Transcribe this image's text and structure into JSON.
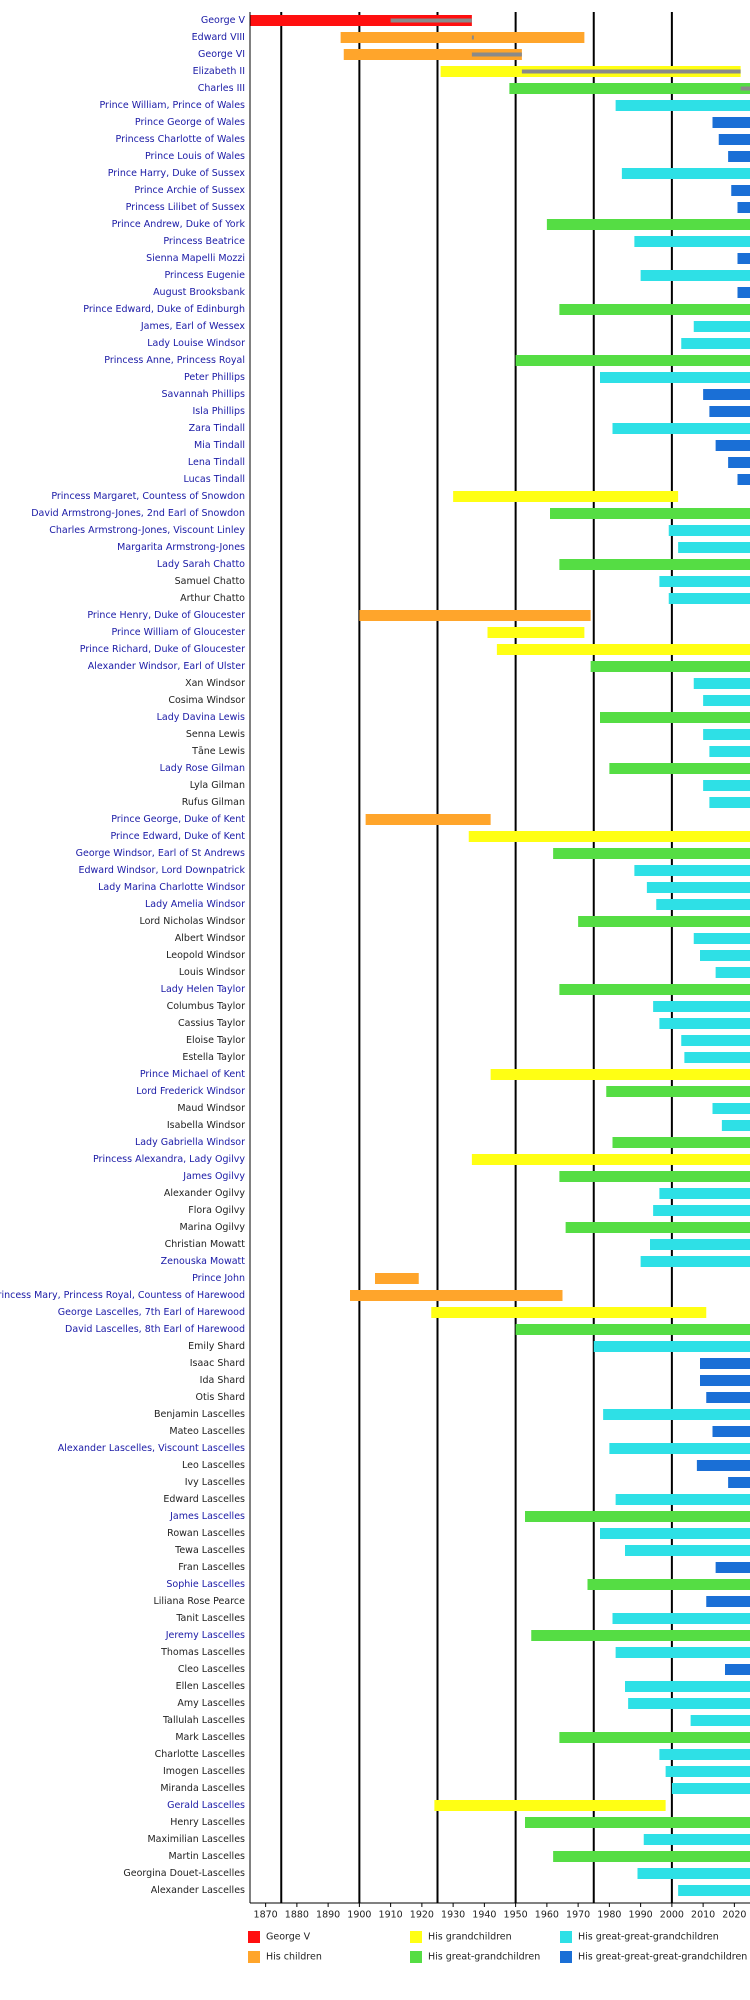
{
  "chart_data": {
    "type": "timeline",
    "categories": [
      "George V",
      "Edward VIII",
      "George VI",
      "Elizabeth II",
      "Charles III",
      "Prince William, Prince of Wales",
      "Prince George of Wales",
      "Princess Charlotte of Wales",
      "Prince Louis of Wales",
      "Prince Harry, Duke of Sussex",
      "Prince Archie of Sussex",
      "Princess Lilibet of Sussex",
      "Prince Andrew, Duke of York",
      "Princess Beatrice",
      "Sienna Mapelli Mozzi",
      "Princess Eugenie",
      "August Brooksbank",
      "Prince Edward, Duke of Edinburgh",
      "James, Earl of Wessex",
      "Lady Louise Windsor",
      "Princess Anne, Princess Royal",
      "Peter Phillips",
      "Savannah Phillips",
      "Isla Phillips",
      "Zara Tindall",
      "Mia Tindall",
      "Lena Tindall",
      "Lucas Tindall",
      "Princess Margaret, Countess of Snowdon",
      "David Armstrong-Jones, 2nd Earl of Snowdon",
      "Charles Armstrong-Jones, Viscount Linley",
      "Margarita Armstrong-Jones",
      "Lady Sarah Chatto",
      "Samuel Chatto",
      "Arthur Chatto",
      "Prince Henry, Duke of Gloucester",
      "Prince William of Gloucester",
      "Prince Richard, Duke of Gloucester",
      "Alexander Windsor, Earl of Ulster",
      "Xan Windsor",
      "Cosima Windsor",
      "Lady Davina Lewis",
      "Senna Lewis",
      "Tāne Lewis",
      "Lady Rose Gilman",
      "Lyla Gilman",
      "Rufus Gilman",
      "Prince George, Duke of Kent",
      "Prince Edward, Duke of Kent",
      "George Windsor, Earl of St Andrews",
      "Edward Windsor, Lord Downpatrick",
      "Lady Marina Charlotte Windsor",
      "Lady Amelia Windsor",
      "Lord Nicholas Windsor",
      "Albert Windsor",
      "Leopold Windsor",
      "Louis Windsor",
      "Lady Helen Taylor",
      "Columbus Taylor",
      "Cassius Taylor",
      "Eloise Taylor",
      "Estella Taylor",
      "Prince Michael of Kent",
      "Lord Frederick Windsor",
      "Maud Windsor",
      "Isabella Windsor",
      "Lady Gabriella Windsor",
      "Princess Alexandra, Lady Ogilvy",
      "James Ogilvy",
      "Alexander Ogilvy",
      "Flora Ogilvy",
      "Marina Ogilvy",
      "Christian Mowatt",
      "Zenouska Mowatt",
      "Prince John",
      "Princess Mary, Princess Royal, Countess of Harewood",
      "George Lascelles, 7th Earl of Harewood",
      "David Lascelles, 8th Earl of Harewood",
      "Emily Shard",
      "Isaac Shard",
      "Ida Shard",
      "Otis Shard",
      "Benjamin Lascelles",
      "Mateo Lascelles",
      "Alexander Lascelles, Viscount Lascelles",
      "Leo Lascelles",
      "Ivy Lascelles",
      "Edward Lascelles",
      "James Lascelles",
      "Rowan Lascelles",
      "Tewa Lascelles",
      "Fran Lascelles",
      "Sophie Lascelles",
      "Liliana Rose Pearce",
      "Tanit Lascelles",
      "Jeremy Lascelles",
      "Thomas Lascelles",
      "Cleo Lascelles",
      "Ellen Lascelles",
      "Amy Lascelles",
      "Tallulah Lascelles",
      "Mark Lascelles",
      "Charlotte Lascelles",
      "Imogen Lascelles",
      "Miranda Lascelles",
      "Gerald Lascelles",
      "Henry Lascelles",
      "Maximilian Lascelles",
      "Martin Lascelles",
      "Georgina Douet-Lascelles",
      "Alexander Lascelles"
    ],
    "starts": [
      1865,
      1894,
      1895,
      1926,
      1948,
      1982,
      2013,
      2015,
      2018,
      1984,
      2019,
      2021,
      1960,
      1988,
      2021,
      1990,
      2021,
      1964,
      2007,
      2003,
      1950,
      1977,
      2010,
      2012,
      1981,
      2014,
      2018,
      2021,
      1930,
      1961,
      1999,
      2002,
      1964,
      1996,
      1999,
      1900,
      1941,
      1944,
      1974,
      2007,
      2010,
      1977,
      2010,
      2012,
      1980,
      2010,
      2012,
      1902,
      1935,
      1962,
      1988,
      1992,
      1995,
      1970,
      2007,
      2009,
      2014,
      1964,
      1994,
      1996,
      2003,
      2004,
      1942,
      1979,
      2013,
      2016,
      1981,
      1936,
      1964,
      1996,
      1994,
      1966,
      1993,
      1990,
      1905,
      1897,
      1923,
      1950,
      1975,
      2009,
      2009,
      2011,
      1978,
      2013,
      1980,
      2008,
      2018,
      1982,
      1953,
      1977,
      1985,
      2014,
      1973,
      2011,
      1981,
      1955,
      1982,
      2017,
      1985,
      1986,
      2006,
      1964,
      1996,
      1998,
      2000,
      1924,
      1953,
      1991,
      1962,
      1989,
      2002
    ],
    "ends": [
      1936,
      1972,
      1952,
      2022,
      2025,
      2025,
      2025,
      2025,
      2025,
      2025,
      2025,
      2025,
      2025,
      2025,
      2025,
      2025,
      2025,
      2025,
      2025,
      2025,
      2025,
      2025,
      2025,
      2025,
      2025,
      2025,
      2025,
      2025,
      2002,
      2025,
      2025,
      2025,
      2025,
      2025,
      2025,
      1974,
      1972,
      2025,
      2025,
      2025,
      2025,
      2025,
      2025,
      2025,
      2025,
      2025,
      2025,
      1942,
      2025,
      2025,
      2025,
      2025,
      2025,
      2025,
      2025,
      2025,
      2025,
      2025,
      2025,
      2025,
      2025,
      2025,
      2025,
      2025,
      2025,
      2025,
      2025,
      2025,
      2025,
      2025,
      2025,
      2025,
      2025,
      2025,
      1919,
      1965,
      2011,
      2025,
      2025,
      2025,
      2025,
      2025,
      2025,
      2025,
      2025,
      2025,
      2025,
      2025,
      2025,
      2025,
      2025,
      2025,
      2025,
      2025,
      2025,
      2025,
      2025,
      2025,
      2025,
      2025,
      2025,
      2025,
      2025,
      2025,
      2025,
      1998,
      2025,
      2025,
      2025,
      2025,
      2025
    ],
    "generations": [
      0,
      1,
      1,
      2,
      3,
      4,
      5,
      5,
      5,
      4,
      5,
      5,
      3,
      4,
      5,
      4,
      5,
      3,
      4,
      4,
      3,
      4,
      5,
      5,
      4,
      5,
      5,
      5,
      2,
      3,
      4,
      4,
      3,
      4,
      4,
      1,
      2,
      2,
      3,
      4,
      4,
      3,
      4,
      4,
      3,
      4,
      4,
      1,
      2,
      3,
      4,
      4,
      4,
      3,
      4,
      4,
      4,
      3,
      4,
      4,
      4,
      4,
      2,
      3,
      4,
      4,
      3,
      2,
      3,
      4,
      4,
      3,
      4,
      4,
      1,
      1,
      2,
      3,
      4,
      5,
      5,
      5,
      4,
      5,
      4,
      5,
      5,
      4,
      3,
      4,
      4,
      5,
      3,
      5,
      4,
      3,
      4,
      5,
      4,
      4,
      4,
      3,
      4,
      4,
      4,
      2,
      3,
      4,
      3,
      4,
      4
    ],
    "links": [
      1,
      1,
      1,
      1,
      1,
      1,
      1,
      1,
      1,
      1,
      1,
      1,
      1,
      1,
      1,
      1,
      1,
      1,
      1,
      1,
      1,
      1,
      1,
      1,
      1,
      1,
      1,
      1,
      1,
      1,
      1,
      1,
      1,
      0,
      0,
      1,
      1,
      1,
      1,
      0,
      0,
      1,
      0,
      0,
      1,
      0,
      0,
      1,
      1,
      1,
      1,
      1,
      1,
      0,
      0,
      0,
      0,
      1,
      0,
      0,
      0,
      0,
      1,
      1,
      0,
      0,
      1,
      1,
      1,
      0,
      0,
      0,
      0,
      1,
      1,
      1,
      1,
      1,
      0,
      0,
      0,
      0,
      0,
      0,
      1,
      0,
      0,
      0,
      1,
      0,
      0,
      0,
      1,
      0,
      0,
      1,
      0,
      0,
      0,
      0,
      0,
      0,
      0,
      0,
      0,
      1,
      0,
      0,
      0,
      0,
      0
    ],
    "link_color": "#1a1aa6",
    "text_color": "#222222",
    "reign_starts": [
      1910,
      1936,
      1936,
      1952,
      2022
    ],
    "reign_ends": [
      1936,
      1936,
      1952,
      2022,
      2025
    ],
    "reign_color": "#8a8a8a",
    "series": [
      {
        "name": "George V",
        "color": "#ff0f0f"
      },
      {
        "name": "His children",
        "color": "#ffa52b"
      },
      {
        "name": "His grandchildren",
        "color": "#ffff14"
      },
      {
        "name": "His great-grandchildren",
        "color": "#55dd44"
      },
      {
        "name": "His great-great-grandchildren",
        "color": "#2ee0e6"
      },
      {
        "name": "His great-great-great-grandchildren",
        "color": "#1a6fd6"
      }
    ],
    "xlim": [
      1865,
      2025
    ],
    "xticks": [
      1870,
      1880,
      1890,
      1900,
      1910,
      1920,
      1930,
      1940,
      1950,
      1960,
      1970,
      1980,
      1990,
      2000,
      2010,
      2020
    ],
    "major_grid": [
      1875,
      1900,
      1925,
      1950,
      1975,
      2000
    ]
  }
}
